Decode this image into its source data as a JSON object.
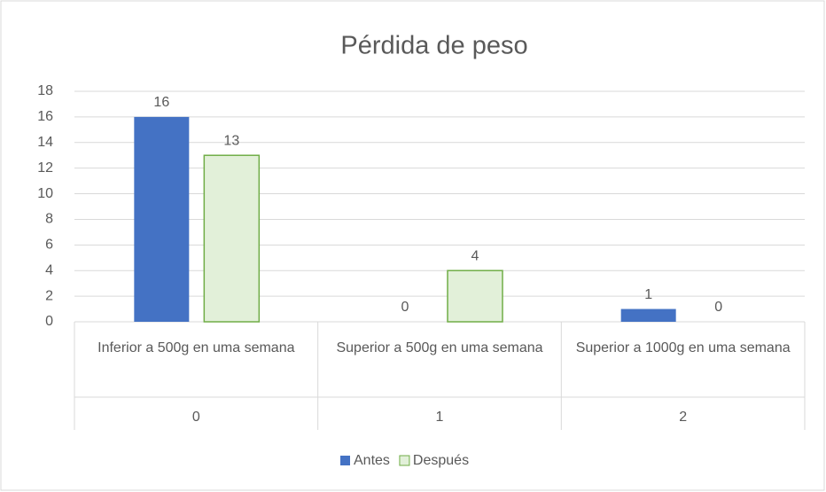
{
  "chart_data": {
    "type": "bar",
    "title": "Pérdida de peso",
    "categories": [
      "Inferior a 500g en uma semana",
      "Superior a 500g en uma semana",
      "Superior a 1000g en uma semana"
    ],
    "subcategories": [
      "0",
      "1",
      "2"
    ],
    "series": [
      {
        "name": "Antes",
        "color": "#4472c4",
        "values": [
          16,
          0,
          1
        ]
      },
      {
        "name": "Después",
        "color": "#e2f0d9",
        "edge_color": "#70ad47",
        "values": [
          13,
          4,
          0
        ]
      }
    ],
    "ylim": [
      0,
      18
    ],
    "yticks": [
      0,
      2,
      4,
      6,
      8,
      10,
      12,
      14,
      16,
      18
    ],
    "grid": true,
    "legend": "bottom"
  }
}
